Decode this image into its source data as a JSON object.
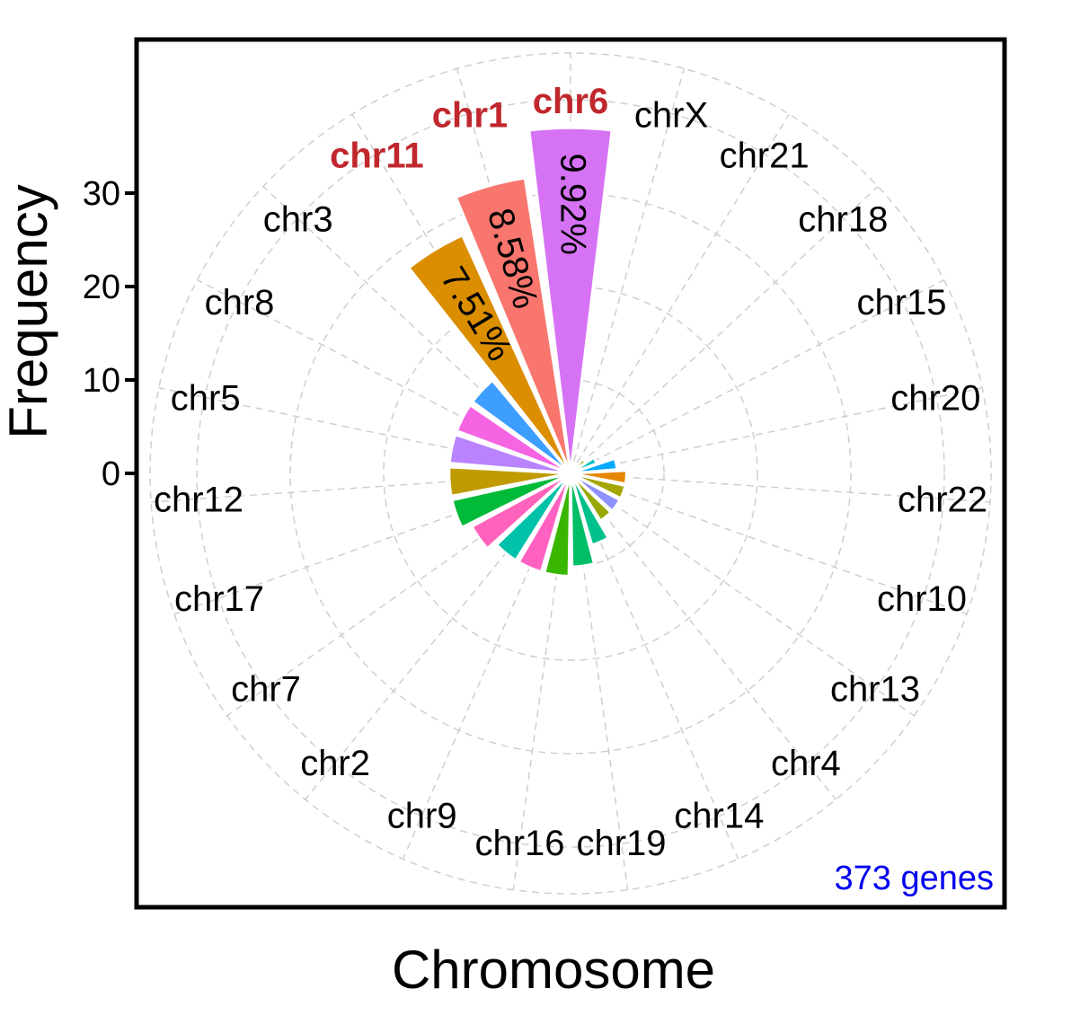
{
  "chart_data": {
    "type": "bar",
    "coord": "polar",
    "xlabel": "Chromosome",
    "ylabel": "Frequency",
    "yticks": [
      0,
      10,
      20,
      30
    ],
    "ylim": [
      0,
      37
    ],
    "annotation": "373 genes",
    "categories": [
      "chr6",
      "chrX",
      "chr21",
      "chr18",
      "chr15",
      "chr20",
      "chr22",
      "chr10",
      "chr13",
      "chr4",
      "chr14",
      "chr19",
      "chr16",
      "chr9",
      "chr2",
      "chr7",
      "chr17",
      "chr12",
      "chr5",
      "chr8",
      "chr3",
      "chr11",
      "chr1"
    ],
    "values": [
      37,
      1,
      1,
      2,
      3,
      5,
      6,
      6,
      6,
      6,
      8,
      10,
      11,
      11,
      11,
      12,
      13,
      13,
      13,
      13,
      13,
      28,
      32
    ],
    "colors": [
      "#D673F5",
      "#00B8E5",
      "#00BDD0",
      "#7CAE00",
      "#00BFC4",
      "#00A9FF",
      "#E58700",
      "#A3A500",
      "#8F91FF",
      "#99A800",
      "#00C08B",
      "#00BE67",
      "#39B600",
      "#FF61C3",
      "#00C1A9",
      "#FF62BC",
      "#00BA38",
      "#C09B00",
      "#B983FF",
      "#F564E3",
      "#3D9EFF",
      "#DB8E00",
      "#F8766D"
    ],
    "highlighted": [
      "chr6",
      "chr1",
      "chr11"
    ],
    "percent_labels": [
      {
        "category": "chr6",
        "text": "9.92%"
      },
      {
        "category": "chr1",
        "text": "8.58%"
      },
      {
        "category": "chr11",
        "text": "7.51%"
      }
    ]
  }
}
